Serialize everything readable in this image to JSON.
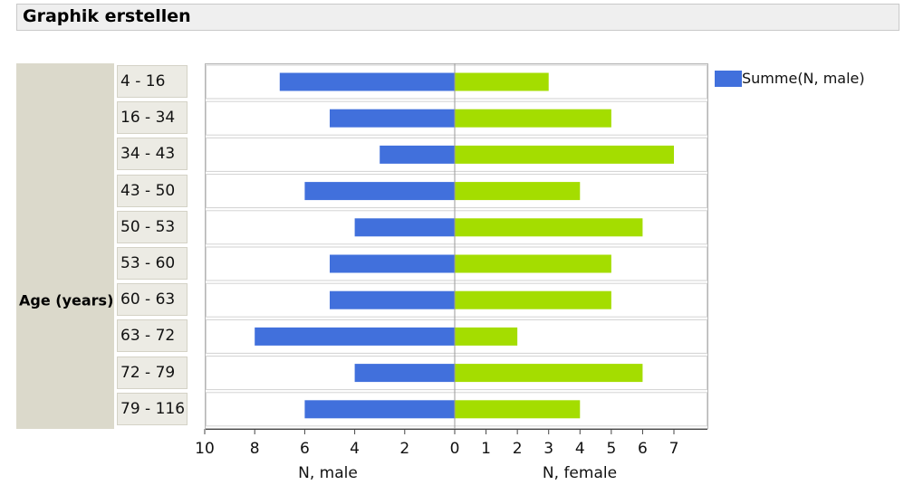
{
  "header": {
    "title": "Graphik erstellen"
  },
  "chart_data": {
    "type": "bar",
    "orientation": "horizontal-butterfly",
    "ylabel": "Age (years)",
    "categories": [
      "4 - 16",
      "16 - 34",
      "34 - 43",
      "43 - 50",
      "50 - 53",
      "53 - 60",
      "60 - 63",
      "63 - 72",
      "72 - 79",
      "79 - 116"
    ],
    "series": [
      {
        "name": "N, male",
        "side": "left",
        "color": "#4170dc",
        "values": [
          7,
          5,
          3,
          6,
          4,
          5,
          5,
          8,
          4,
          6
        ]
      },
      {
        "name": "N, female",
        "side": "right",
        "color": "#a4dd00",
        "values": [
          3,
          5,
          7,
          4,
          6,
          5,
          5,
          2,
          6,
          4
        ]
      }
    ],
    "axes": {
      "left": {
        "label": "N, male",
        "range": [
          10,
          0
        ],
        "ticks": [
          "10",
          "8",
          "6",
          "4",
          "2",
          "0"
        ]
      },
      "right": {
        "label": "N, female",
        "range": [
          0,
          7
        ],
        "ticks": [
          "0",
          "1",
          "2",
          "3",
          "4",
          "5",
          "6",
          "7"
        ]
      }
    },
    "legend": {
      "position": "top-right",
      "entries": [
        "Summe(N, male)"
      ]
    },
    "grid": false
  }
}
